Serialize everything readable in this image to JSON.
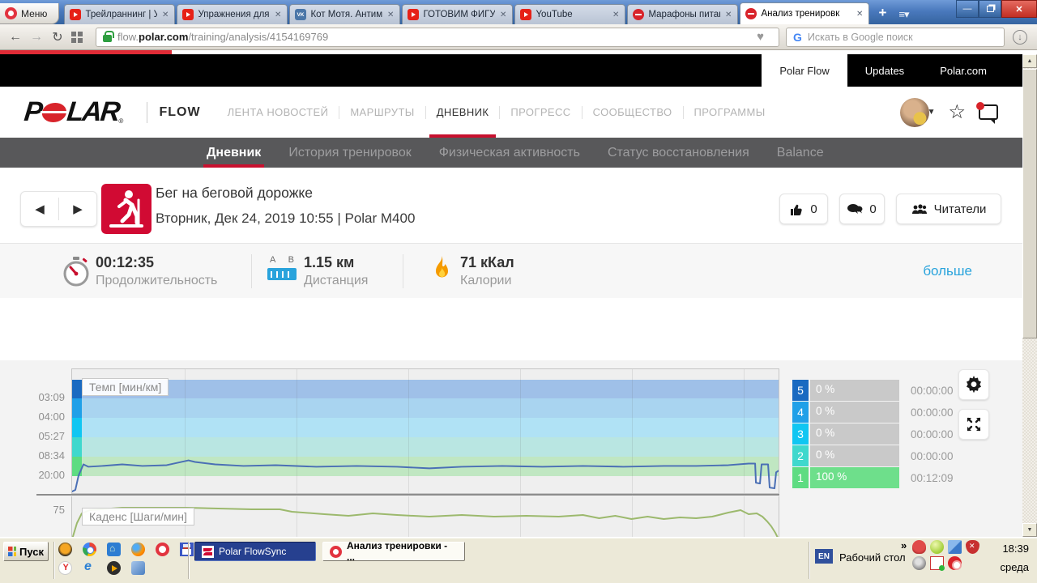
{
  "browser": {
    "menu_label": "Меню",
    "tabs": [
      {
        "title": "Трейлраннинг | Уп",
        "icon": "youtube"
      },
      {
        "title": "Упражнения для у",
        "icon": "youtube"
      },
      {
        "title": "Кот Мотя. Антимы",
        "icon": "vk"
      },
      {
        "title": "ГОТОВИМ ФИГУРУ",
        "icon": "youtube"
      },
      {
        "title": "YouTube",
        "icon": "youtube"
      },
      {
        "title": "Марафоны питани",
        "icon": "red-dot"
      },
      {
        "title": "Анализ тренировк",
        "icon": "red-dot"
      }
    ],
    "url_prefix": "flow.",
    "url_domain": "polar.com",
    "url_path": "/training/analysis/4154169769",
    "search_placeholder": "Искать в Google поиск",
    "search_logo": "G"
  },
  "polar_bar": {
    "active_link": "Polar Flow",
    "link_updates": "Updates",
    "link_polarcom": "Polar.com"
  },
  "nav": {
    "product": "FLOW",
    "items": [
      "ЛЕНТА НОВОСТЕЙ",
      "МАРШРУТЫ",
      "ДНЕВНИК",
      "ПРОГРЕСС",
      "СООБЩЕСТВО",
      "ПРОГРАММЫ"
    ]
  },
  "subnav": {
    "items": [
      "Дневник",
      "История тренировок",
      "Физическая активность",
      "Статус восстановления",
      "Balance"
    ]
  },
  "session": {
    "title": "Бег на беговой дорожке",
    "subtitle": "Вторник, Дек 24, 2019 10:55 | Polar M400",
    "likes": "0",
    "comments": "0",
    "readers": "Читатели"
  },
  "stats": {
    "duration_value": "00:12:35",
    "duration_label": "Продолжительность",
    "distance_a": "A",
    "distance_b": "B",
    "distance_value": "1.15 км",
    "distance_label": "Дистанция",
    "calories_value": "71 кКал",
    "calories_label": "Калории",
    "more": "больше"
  },
  "zones": [
    {
      "zone": "5",
      "percent": "0 %",
      "time": "00:00:00",
      "color": "#1a6ac1",
      "fill_percent": 0,
      "fill_color": "#6edf8b"
    },
    {
      "zone": "4",
      "percent": "0 %",
      "time": "00:00:00",
      "color": "#20a0e8",
      "fill_percent": 0,
      "fill_color": "#6edf8b"
    },
    {
      "zone": "3",
      "percent": "0 %",
      "time": "00:00:00",
      "color": "#10c6f2",
      "fill_percent": 0,
      "fill_color": "#6edf8b"
    },
    {
      "zone": "2",
      "percent": "0 %",
      "time": "00:00:00",
      "color": "#3fd8cd",
      "fill_percent": 0,
      "fill_color": "#6edf8b"
    },
    {
      "zone": "1",
      "percent": "100 %",
      "time": "00:12:09",
      "color": "#5edc82",
      "fill_percent": 100,
      "fill_color": "#6edf8b"
    }
  ],
  "chart_data": [
    {
      "type": "line",
      "title": "Темп [мин/км]",
      "yticks": [
        "03:09",
        "04:00",
        "05:27",
        "08:34",
        "20:00"
      ],
      "legend_position": "top-left",
      "grid": true,
      "line_color": "#4a6fb5",
      "bands": [
        {
          "zone": "5",
          "from": 13,
          "to": 36,
          "band_color": "#9fc0e8",
          "chip_color": "#1a6ac1"
        },
        {
          "zone": "4",
          "from": 36,
          "to": 60,
          "band_color": "#a9d4f0",
          "chip_color": "#20a0e8"
        },
        {
          "zone": "3",
          "from": 60,
          "to": 84,
          "band_color": "#b0e2f5",
          "chip_color": "#10c6f2"
        },
        {
          "zone": "2",
          "from": 84,
          "to": 108,
          "band_color": "#b9e6e2",
          "chip_color": "#3fd8cd"
        },
        {
          "zone": "1",
          "from": 108,
          "to": 132,
          "band_color": "#c0e7c2",
          "chip_color": "#5edc82"
        }
      ],
      "points": [
        [
          0,
          153
        ],
        [
          4,
          151
        ],
        [
          8,
          133
        ],
        [
          14,
          119
        ],
        [
          20,
          122
        ],
        [
          37,
          121
        ],
        [
          62,
          119
        ],
        [
          87,
          121
        ],
        [
          117,
          120
        ],
        [
          144,
          114
        ],
        [
          152,
          116
        ],
        [
          177,
          119
        ],
        [
          212,
          121
        ],
        [
          252,
          120
        ],
        [
          302,
          122
        ],
        [
          352,
          121
        ],
        [
          402,
          122
        ],
        [
          442,
          124
        ],
        [
          482,
          122
        ],
        [
          532,
          121
        ],
        [
          582,
          122
        ],
        [
          632,
          121
        ],
        [
          682,
          122
        ],
        [
          732,
          121
        ],
        [
          772,
          121
        ],
        [
          812,
          120
        ],
        [
          837,
          118
        ],
        [
          845,
          118
        ],
        [
          846,
          142
        ],
        [
          851,
          143
        ],
        [
          853,
          119
        ],
        [
          861,
          119
        ],
        [
          863,
          148
        ],
        [
          869,
          149
        ],
        [
          871,
          129
        ],
        [
          874,
          127
        ]
      ]
    },
    {
      "type": "line",
      "title": "Каденс [Шаги/мин]",
      "yticks": [
        "75"
      ],
      "legend_position": "top-left",
      "grid": true,
      "line_color": "#9cb96d",
      "points": [
        [
          0,
          53
        ],
        [
          6,
          33
        ],
        [
          12,
          21
        ],
        [
          22,
          17
        ],
        [
          62,
          14
        ],
        [
          142,
          14
        ],
        [
          222,
          16
        ],
        [
          257,
          16
        ],
        [
          272,
          19
        ],
        [
          312,
          22
        ],
        [
          342,
          24
        ],
        [
          372,
          21
        ],
        [
          402,
          23
        ],
        [
          442,
          25
        ],
        [
          482,
          23
        ],
        [
          522,
          25
        ],
        [
          562,
          24
        ],
        [
          602,
          25
        ],
        [
          632,
          23
        ],
        [
          652,
          27
        ],
        [
          672,
          24
        ],
        [
          692,
          28
        ],
        [
          712,
          25
        ],
        [
          732,
          28
        ],
        [
          752,
          26
        ],
        [
          772,
          27
        ],
        [
          792,
          25
        ],
        [
          812,
          20
        ],
        [
          827,
          17
        ],
        [
          837,
          22
        ],
        [
          847,
          21
        ],
        [
          854,
          25
        ],
        [
          860,
          31
        ],
        [
          865,
          37
        ],
        [
          870,
          45
        ],
        [
          874,
          53
        ]
      ]
    }
  ],
  "taskbar": {
    "start": "Пуск",
    "quick_launch_row1": [
      "aimp-icon",
      "chrome-icon",
      "home-icon",
      "firefox-icon",
      "opera-icon",
      "save-icon",
      "window-icon"
    ],
    "quick_launch_row2": [
      "yandex-icon",
      "ie-icon",
      "player-icon",
      "appblue-icon"
    ],
    "task1": "Polar FlowSync",
    "task2": "Анализ тренировки - ...",
    "lang": "EN",
    "desktop": "Рабочий стол",
    "overflow": "»",
    "tray_row1": [
      "red-creature-icon",
      "lime-icon",
      "network-icon",
      "shield-alert-icon"
    ],
    "tray_row2": [
      "webcam-icon",
      "sync-ok-icon",
      "red-app-icon"
    ],
    "clock_time": "18:39",
    "clock_day": "среда"
  },
  "colors": {
    "polar_red": "#d10a33",
    "accent_red": "#c8102e",
    "link_blue": "#29a3dc",
    "zone_bar_gray": "#c9c9c9"
  }
}
